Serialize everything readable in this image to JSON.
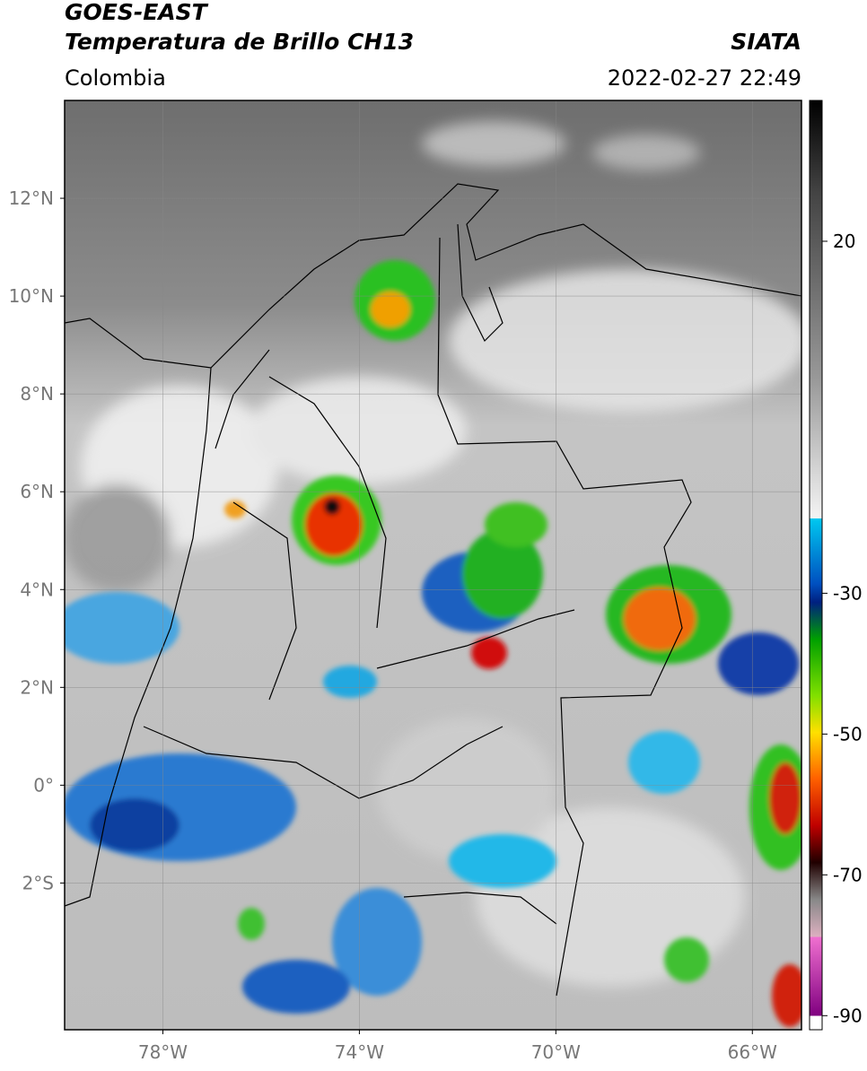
{
  "chart_data": {
    "type": "map",
    "title": "GOES-EAST",
    "subtitle": "Temperatura de Brillo CH13",
    "region": "Colombia",
    "source": "SIATA",
    "datetime": "2022-02-27 22:49",
    "xlim": [
      -80,
      -65
    ],
    "ylim": [
      -5,
      14
    ],
    "xticks": [
      {
        "value": -78,
        "label": "78°W"
      },
      {
        "value": -74,
        "label": "74°W"
      },
      {
        "value": -70,
        "label": "70°W"
      },
      {
        "value": -66,
        "label": "66°W"
      }
    ],
    "yticks": [
      {
        "value": 12,
        "label": "12°N"
      },
      {
        "value": 10,
        "label": "10°N"
      },
      {
        "value": 8,
        "label": "8°N"
      },
      {
        "value": 6,
        "label": "6°N"
      },
      {
        "value": 4,
        "label": "4°N"
      },
      {
        "value": 2,
        "label": "2°N"
      },
      {
        "value": 0,
        "label": "0°"
      },
      {
        "value": -2,
        "label": "2°S"
      }
    ],
    "grid": true,
    "colorbar": {
      "lim": [
        -92,
        40
      ],
      "ticks": [
        20,
        -30,
        -50,
        -70,
        -90
      ]
    }
  }
}
